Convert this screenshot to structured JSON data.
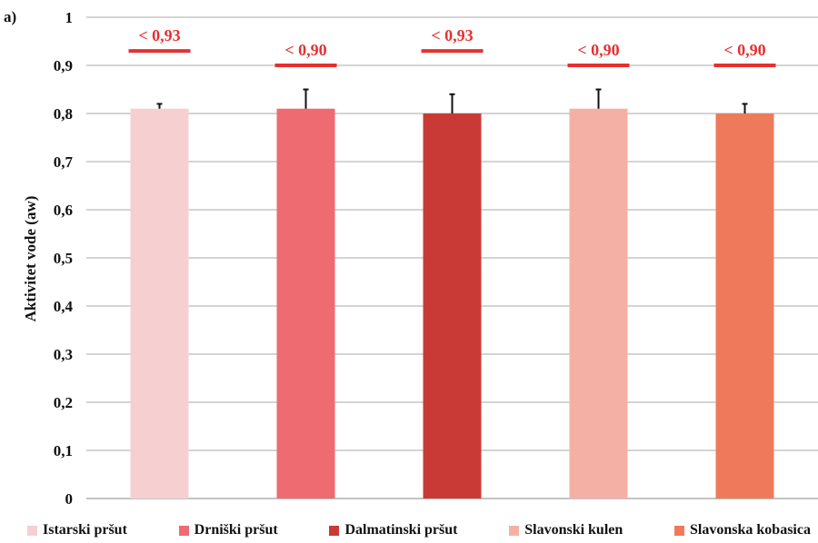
{
  "panel_label": "a)",
  "chart_data": {
    "type": "bar",
    "ylabel": "Aktivitet vode (aw)",
    "xlabel": "",
    "ylim": [
      0,
      1
    ],
    "ytick_labels": [
      "0",
      "0,1",
      "0,2",
      "0,3",
      "0,4",
      "0,5",
      "0,6",
      "0,7",
      "0,8",
      "0,9",
      "1"
    ],
    "grid": true,
    "legend_position": "bottom",
    "categories": [
      "Istarski pršut",
      "Drniški pršut",
      "Dalmatinski pršut",
      "Slavonski kulen",
      "Slavonska kobasica"
    ],
    "values": [
      0.81,
      0.81,
      0.8,
      0.81,
      0.8
    ],
    "error_upper": [
      0.01,
      0.04,
      0.04,
      0.04,
      0.02
    ],
    "colors": [
      "#f6d0d0",
      "#ee6b72",
      "#c93a37",
      "#f5b0a5",
      "#ef7a5b"
    ],
    "limits": [
      {
        "label": "< 0,93",
        "value": 0.93
      },
      {
        "label": "< 0,90",
        "value": 0.9
      },
      {
        "label": "< 0,93",
        "value": 0.93
      },
      {
        "label": "< 0,90",
        "value": 0.9
      },
      {
        "label": "< 0,90",
        "value": 0.9
      }
    ],
    "limit_color": "#e53030"
  }
}
